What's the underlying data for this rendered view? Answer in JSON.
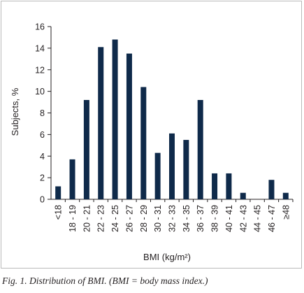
{
  "caption": "Fig. 1. Distribution of BMI. (BMI = body mass index.)",
  "colors": {
    "bar": "#0f2a4a",
    "axis": "#231f20",
    "frame": "#b9b9b9"
  },
  "chart_data": {
    "type": "bar",
    "title": "",
    "xlabel": "BMI (kg/m²)",
    "ylabel": "Subjects, %",
    "ylim": [
      0,
      16
    ],
    "yticks": [
      0,
      2,
      4,
      6,
      8,
      10,
      12,
      14,
      16
    ],
    "grid": false,
    "legend": "none",
    "categories": [
      "<18",
      "18 - 19",
      "20 - 21",
      "22 - 23",
      "24 - 25",
      "26 - 27",
      "28 - 29",
      "30 - 31",
      "32 - 33",
      "34 - 35",
      "36 - 37",
      "38 - 39",
      "40 - 41",
      "42 - 43",
      "44 - 45",
      "46 - 47",
      "≥48"
    ],
    "values": [
      1.2,
      3.7,
      9.2,
      14.1,
      14.8,
      13.5,
      10.4,
      4.3,
      6.1,
      5.5,
      9.2,
      2.4,
      2.4,
      0.6,
      0,
      1.8,
      0.6
    ]
  }
}
